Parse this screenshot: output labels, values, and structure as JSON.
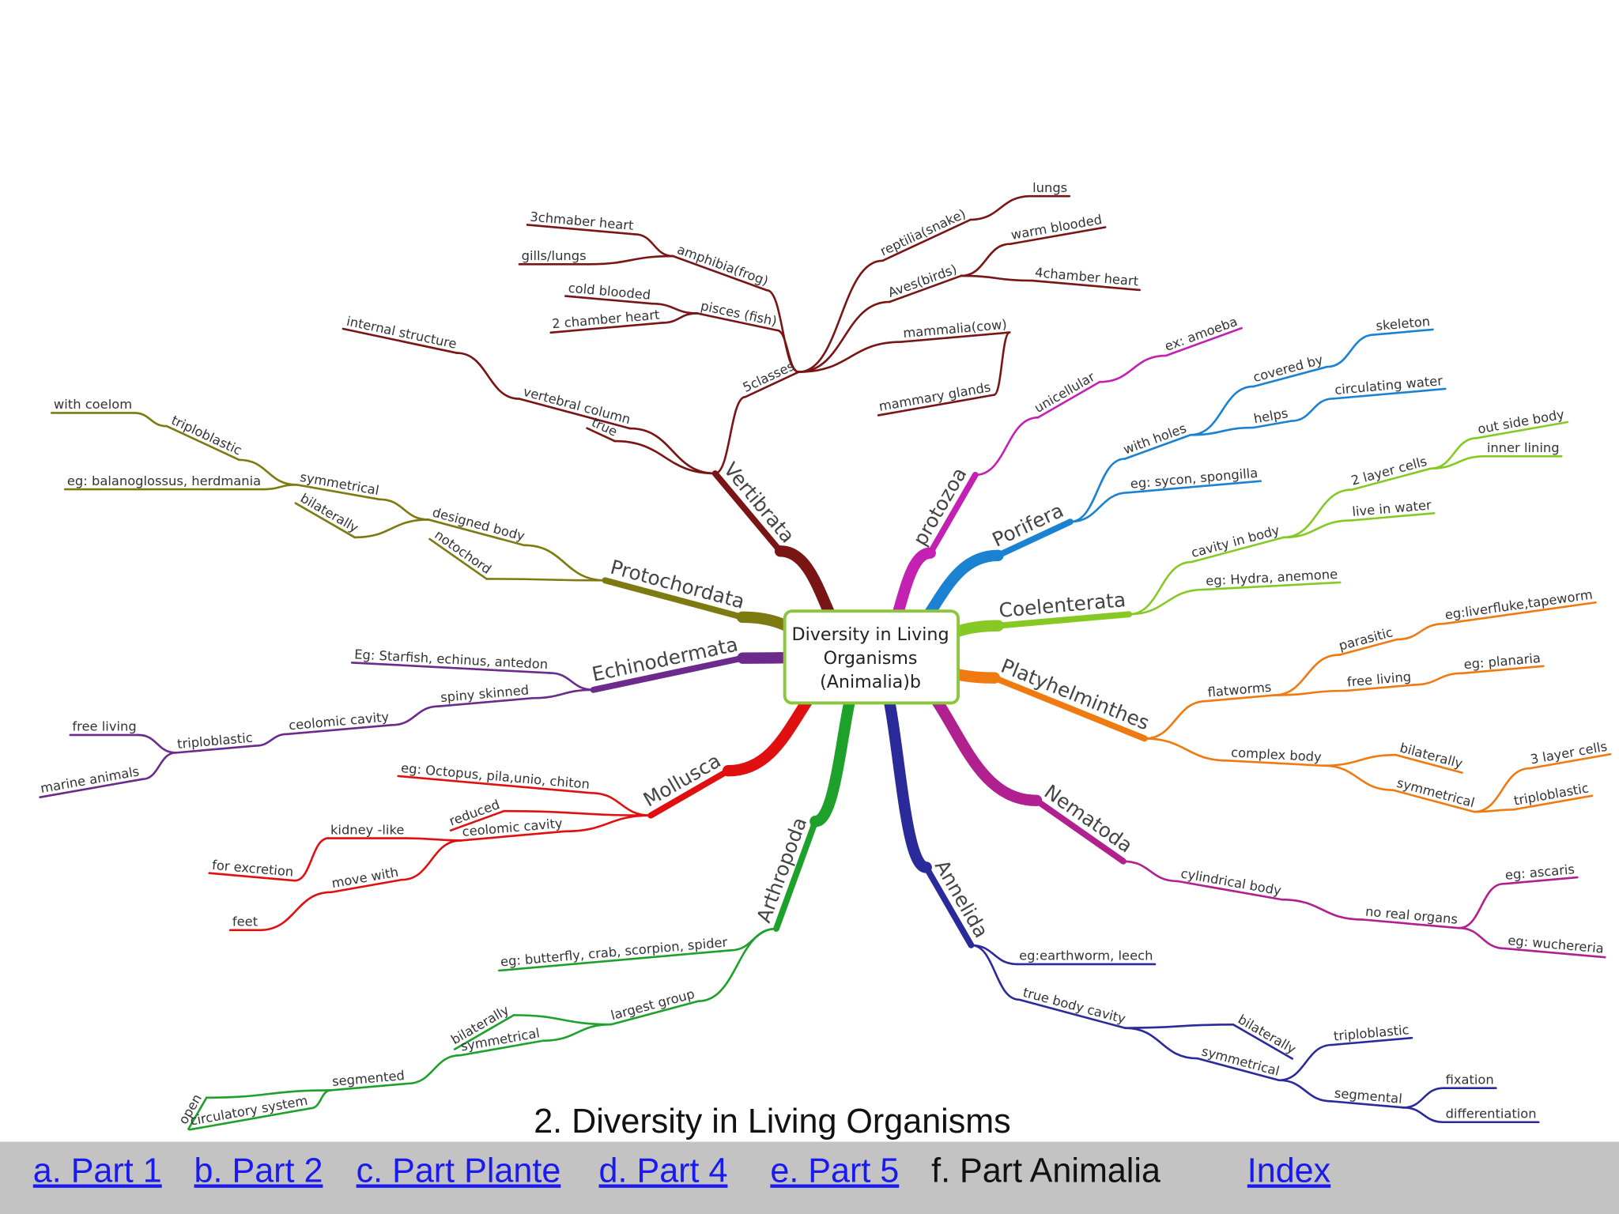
{
  "center": [
    "Diversity in Living",
    "Organisms",
    "(Animalia)b"
  ],
  "branches": [
    {
      "label": "Vertibrata",
      "nodes": [
        "5classes",
        "vertebral column",
        "true",
        "internal structure",
        "pisces (fish)",
        "2 chamber heart",
        "cold blooded",
        "amphibia(frog)",
        "gills/lungs",
        "3chmaber heart",
        "reptilia(snake)",
        "lungs",
        "Aves(birds)",
        "warm blooded",
        "4chamber heart",
        "mammalia(cow)",
        "mammary glands"
      ]
    },
    {
      "label": "Protochordata",
      "nodes": [
        "designed body",
        "notochord",
        "symmetrical",
        "bilaterally",
        "triploblastic",
        "with coelom",
        "eg: balanoglossus, herdmania"
      ]
    },
    {
      "label": "Echinodermata",
      "nodes": [
        "Eg: Starfish, echinus, antedon",
        "spiny skinned",
        "ceolomic cavity",
        "triploblastic",
        "free living",
        "marine animals"
      ]
    },
    {
      "label": "Mollusca",
      "nodes": [
        "eg: Octopus, pila,unio, chiton",
        "reduced",
        "ceolomic cavity",
        "kidney -like",
        "for excretion",
        "move with",
        "feet"
      ]
    },
    {
      "label": "Arthropoda",
      "nodes": [
        "eg: butterfly, crab, scorpion, spider",
        "largest group",
        "bilaterally",
        "symmetrical",
        "segmented",
        "open",
        "circulatory system"
      ]
    },
    {
      "label": "Annelida",
      "nodes": [
        "eg:earthworm, leech",
        "true body cavity",
        "bilaterally",
        "symmetrical",
        "triploblastic",
        "segmental",
        "fixation",
        "differentiation"
      ]
    },
    {
      "label": "Nematoda",
      "nodes": [
        "cylindrical body",
        "no real organs",
        "eg: ascaris",
        "eg: wuchereria"
      ]
    },
    {
      "label": "Platyhelminthes",
      "nodes": [
        "flatworms",
        "complex body",
        "parasitic",
        "free living",
        "eg:liverfluke,tapeworm",
        "eg: planaria",
        "bilaterally",
        "symmetrical",
        "3 layer cells",
        "triploblastic"
      ]
    },
    {
      "label": "Coelenterata",
      "nodes": [
        "eg: Hydra, anemone",
        "cavity in body",
        "2 layer cells",
        "live in water",
        "out side body",
        "inner lining"
      ]
    },
    {
      "label": "Porifera",
      "nodes": [
        "eg: sycon, spongilla",
        "with holes",
        "covered by",
        "helps",
        "skeleton",
        "circulating water"
      ]
    },
    {
      "label": "protozoa",
      "nodes": [
        "unicellular",
        "ex: amoeba"
      ]
    }
  ],
  "footer": {
    "title": "2. Diversity in Living Organisms",
    "links": [
      "a. Part 1",
      "b. Part 2",
      "c. Part Plante",
      "d. Part 4",
      "e. Part 5",
      "f.  Part Animalia",
      "Index"
    ]
  }
}
